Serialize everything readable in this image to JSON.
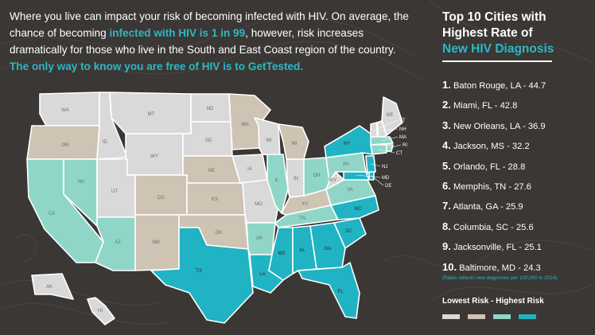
{
  "intro": {
    "p1": "Where you live can impact your risk of becoming infected with HIV.  On average, the chance of becoming ",
    "p1_highlight": "infected with HIV is 1 in 99",
    "p1_end": ", however, risk increases dramatically for those who live in the South and East Coast  region of the country.",
    "cta": "The only way to know you are free of HIV is to GetTested."
  },
  "sidebar": {
    "title_line1": "Top 10 Cities with",
    "title_line2": "Highest Rate of",
    "title_line3": "New HIV Diagnosis",
    "cities": [
      {
        "rank": "1.",
        "text": "Baton Rouge, LA - 44.7"
      },
      {
        "rank": "2.",
        "text": "Miami, FL - 42.8"
      },
      {
        "rank": "3.",
        "text": "New Orleans, LA - 36.9"
      },
      {
        "rank": "4.",
        "text": "Jackson, MS - 32.2"
      },
      {
        "rank": "5.",
        "text": "Orlando, FL - 28.8"
      },
      {
        "rank": "6.",
        "text": "Memphis, TN - 27.6"
      },
      {
        "rank": "7.",
        "text": "Atlanta, GA - 25.9"
      },
      {
        "rank": "8.",
        "text": "Columbia, SC - 25.6"
      },
      {
        "rank": "9.",
        "text": "Jacksonville, FL - 25.1"
      },
      {
        "rank": "10.",
        "text": "Baltimore, MD - 24.3"
      }
    ],
    "note": "(Rates reflects new diagnoses per 100,000 in 2014)",
    "legend_title": "Lowest Risk - Highest Risk",
    "legend_colors": [
      "#d9d9d9",
      "#cfc3b3",
      "#8fd6c8",
      "#20b3c3"
    ]
  },
  "map": {
    "risk_colors": {
      "lowest": "#d9d9d9",
      "low": "#cfc3b3",
      "high": "#8fd6c8",
      "highest": "#20b3c3"
    },
    "labels": {
      "WA": "WA",
      "OR": "OR",
      "CA": "CA",
      "NV": "NV",
      "ID": "ID",
      "MT": "MT",
      "WY": "WY",
      "UT": "UT",
      "AZ": "AZ",
      "CO": "CO",
      "NM": "NM",
      "ND": "ND",
      "SD": "SD",
      "NE": "NE",
      "KS": "KS",
      "OK": "OK",
      "TX": "TX",
      "MN": "MN",
      "IA": "IA",
      "MO": "MO",
      "AR": "AR",
      "LA": "LA",
      "WI": "WI",
      "IL": "IL",
      "MS": "MS",
      "MI": "MI",
      "IN": "IN",
      "KY": "KY",
      "TN": "TN",
      "AL": "AL",
      "OH": "OH",
      "GA": "GA",
      "FL": "FL",
      "SC": "SC",
      "NC": "NC",
      "VA": "VA",
      "WV": "WV",
      "PA": "PA",
      "NY": "NY",
      "ME": "ME",
      "VT": "VT",
      "NH": "NH",
      "MA": "MA",
      "RI": "RI",
      "CT": "CT",
      "NJ": "NJ",
      "MD": "MD",
      "DE": "DE",
      "AK": "AK",
      "HI": "HI"
    }
  }
}
